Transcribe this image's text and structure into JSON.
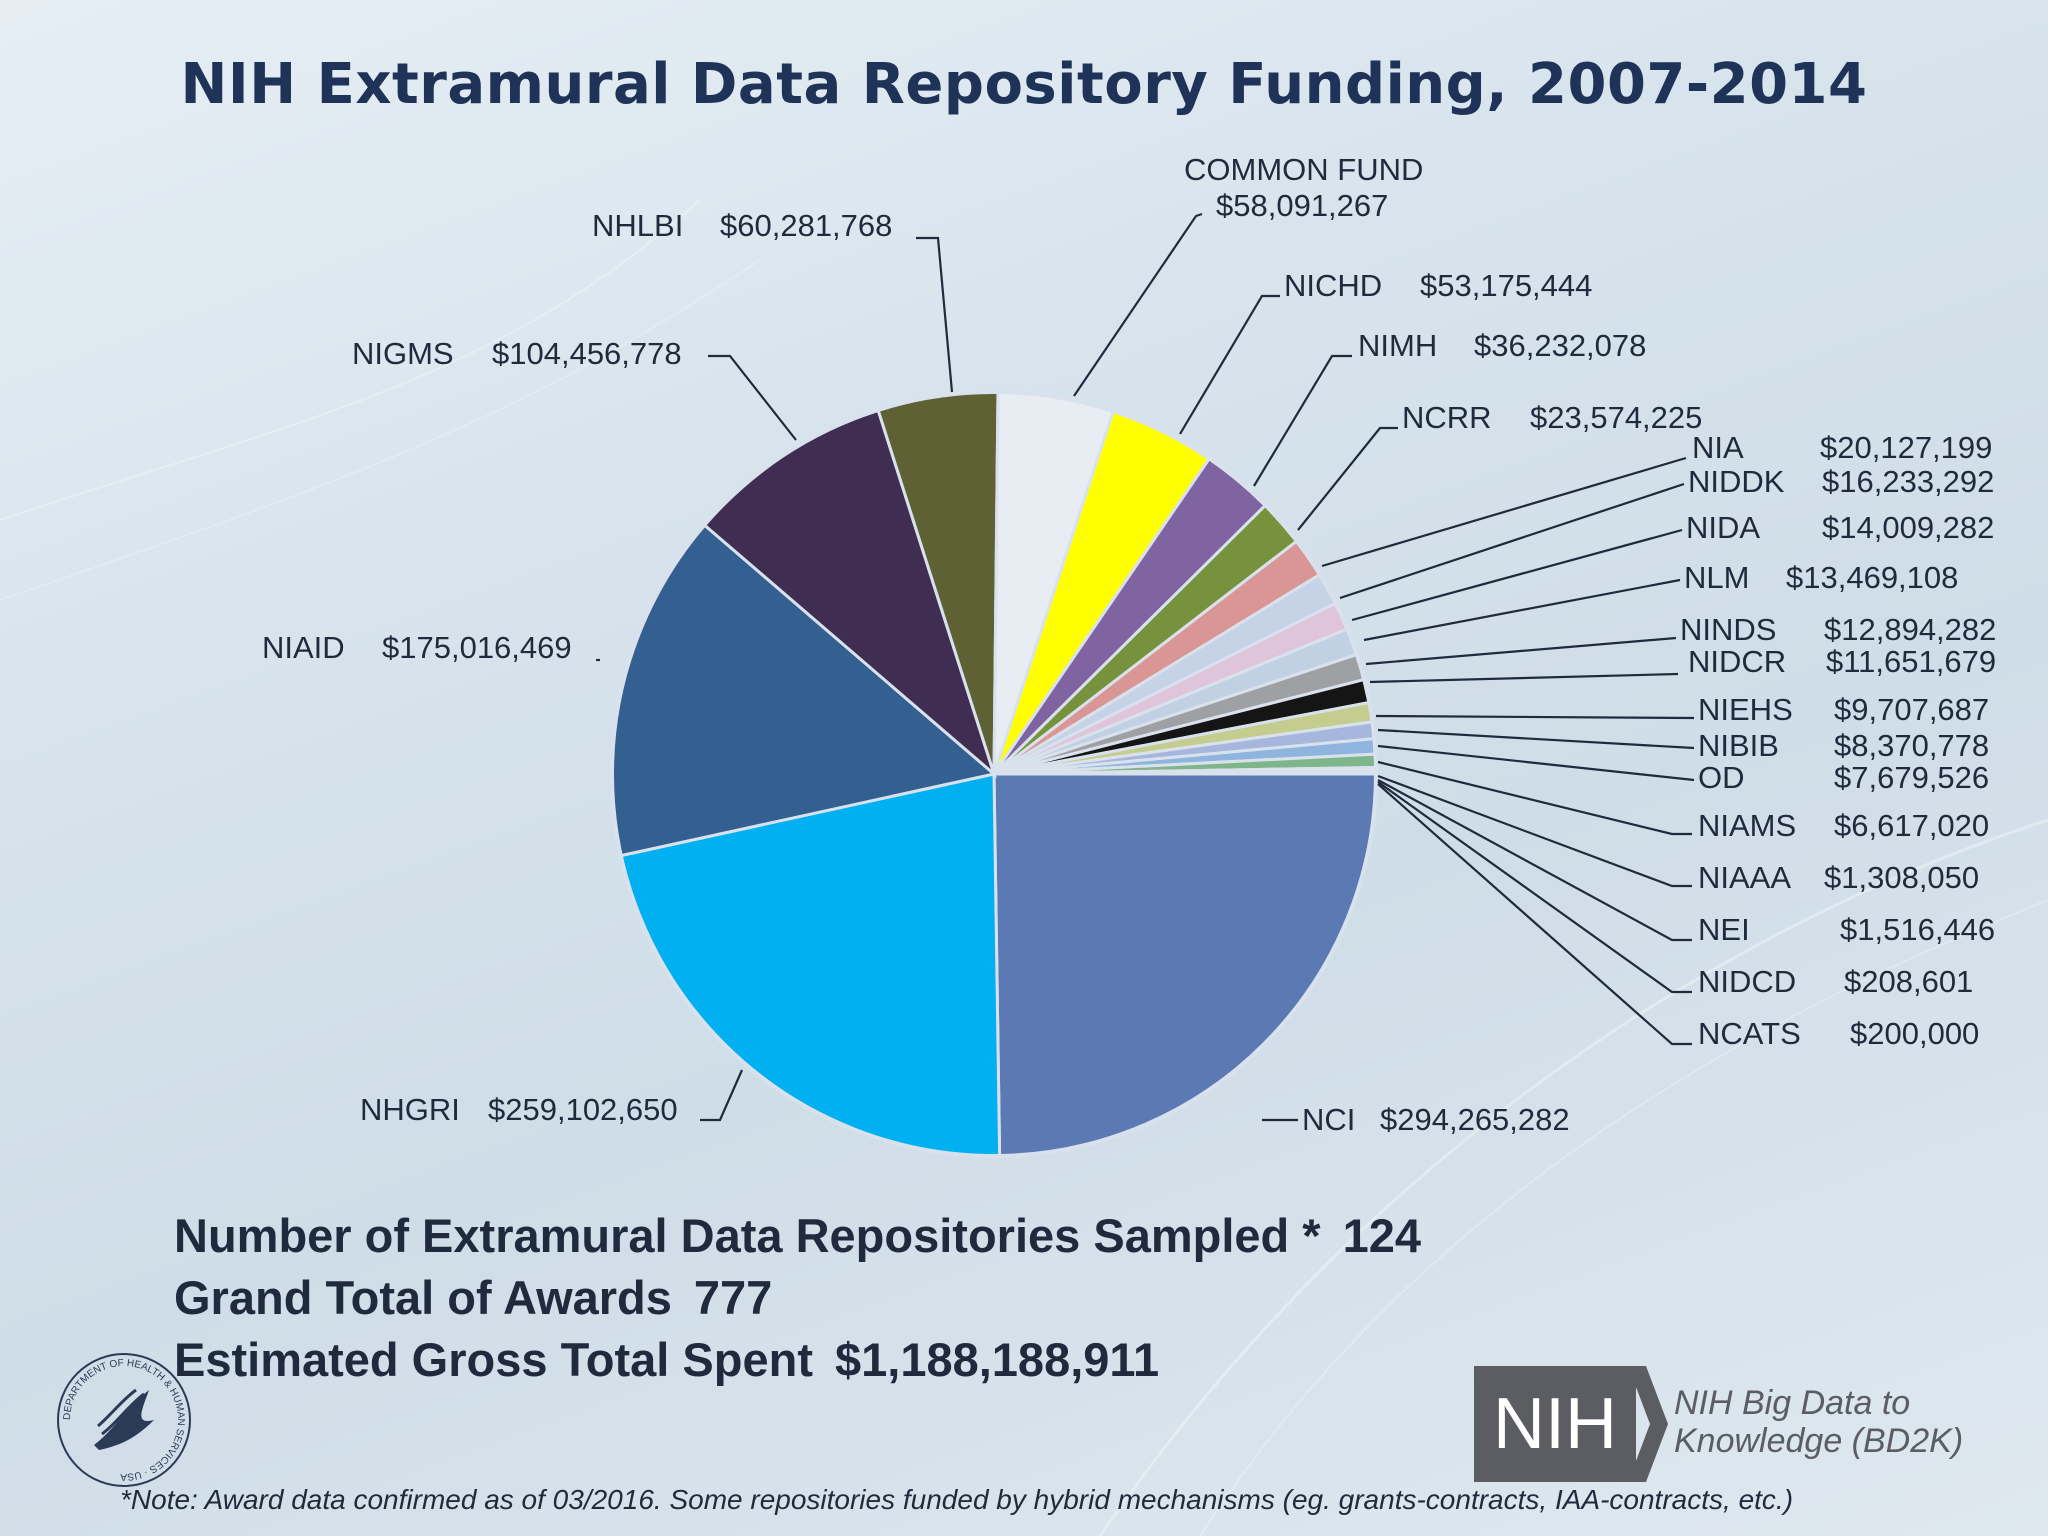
{
  "title": "NIH Extramural Data Repository Funding, 2007-2014",
  "chart_data": {
    "type": "pie",
    "slices": [
      {
        "label": "NCI",
        "value_text": "$294,265,282",
        "value": 294265282,
        "color": "#5b7ab4"
      },
      {
        "label": "NHGRI",
        "value_text": "$259,102,650",
        "value": 259102650,
        "color": "#00b0f0"
      },
      {
        "label": "NIAID",
        "value_text": "$175,016,469",
        "value": 175016469,
        "color": "#335f91"
      },
      {
        "label": "NIGMS",
        "value_text": "$104,456,778",
        "value": 104456778,
        "color": "#3f2d52"
      },
      {
        "label": "NHLBI",
        "value_text": "$60,281,768",
        "value": 60281768,
        "color": "#5e6133"
      },
      {
        "label": "COMMON FUND",
        "value_text": "$58,091,267",
        "value": 58091267,
        "color": "#e8ecf3"
      },
      {
        "label": "NICHD",
        "value_text": "$53,175,444",
        "value": 53175444,
        "color": "#ffff00"
      },
      {
        "label": "NIMH",
        "value_text": "$36,232,078",
        "value": 36232078,
        "color": "#8064a2"
      },
      {
        "label": "NCRR",
        "value_text": "$23,574,225",
        "value": 23574225,
        "color": "#76923c"
      },
      {
        "label": "NIA",
        "value_text": "$20,127,199",
        "value": 20127199,
        "color": "#d99694"
      },
      {
        "label": "NIDDK",
        "value_text": "$16,233,292",
        "value": 16233292,
        "color": "#c6d3e6"
      },
      {
        "label": "NIDA",
        "value_text": "$14,009,282",
        "value": 14009282,
        "color": "#dfc4dc"
      },
      {
        "label": "NLM",
        "value_text": "$13,469,108",
        "value": 13469108,
        "color": "#c2d0e3"
      },
      {
        "label": "NINDS",
        "value_text": "$12,894,282",
        "value": 12894282,
        "color": "#9ea0a3"
      },
      {
        "label": "NIDCR",
        "value_text": "$11,651,679",
        "value": 11651679,
        "color": "#151515"
      },
      {
        "label": "NIEHS",
        "value_text": "$9,707,687",
        "value": 9707687,
        "color": "#c4cc8e"
      },
      {
        "label": "NIBIB",
        "value_text": "$8,370,778",
        "value": 8370778,
        "color": "#a6b6dc"
      },
      {
        "label": "OD",
        "value_text": "$7,679,526",
        "value": 7679526,
        "color": "#8fb4de"
      },
      {
        "label": "NIAMS",
        "value_text": "$6,617,020",
        "value": 6617020,
        "color": "#7fb58a"
      },
      {
        "label": "NIAAA",
        "value_text": "$1,308,050",
        "value": 1308050,
        "color": "#c7d2e3"
      },
      {
        "label": "NEI",
        "value_text": "$1,516,446",
        "value": 1516446,
        "color": "#c7d2e3"
      },
      {
        "label": "NIDCD",
        "value_text": "$208,601",
        "value": 208601,
        "color": "#c7d2e3"
      },
      {
        "label": "NCATS",
        "value_text": "$200,000",
        "value": 200000,
        "color": "#c7d2e3"
      }
    ]
  },
  "stats": {
    "repos_label": "Number of Extramural Data Repositories Sampled *",
    "repos_value": "124",
    "awards_label": "Grand Total of Awards",
    "awards_value": "777",
    "spent_label": "Estimated Gross Total Spent",
    "spent_value": "$1,188,188,911"
  },
  "note": "*Note: Award data confirmed as of 03/2016. Some repositories funded by hybrid mechanisms (eg. grants-contracts, IAA-contracts, etc.)",
  "logos": {
    "nih_box_text": "NIH",
    "bd2k_line1": "NIH Big Data to",
    "bd2k_line2": "Knowledge (BD2K)",
    "hhs_seal_icon": "hhs-eagle-seal-icon",
    "hhs_seal_text": "DEPARTMENT OF HEALTH & HUMAN SERVICES · USA"
  }
}
